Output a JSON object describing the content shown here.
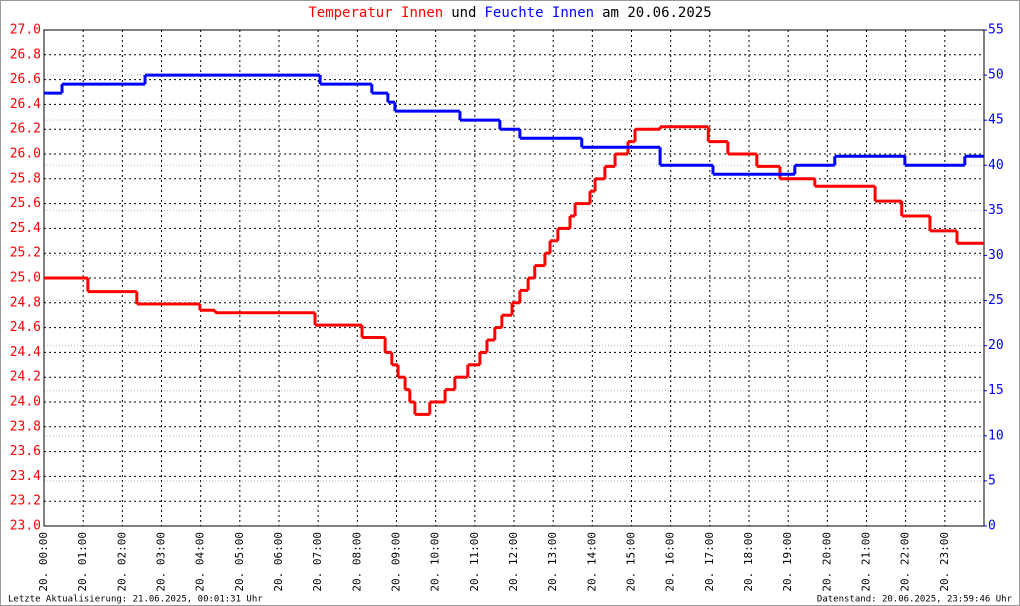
{
  "chart_data": {
    "type": "step-line",
    "title_parts": [
      {
        "text": "Temperatur Innen",
        "color": "#ff0000"
      },
      {
        "text": "und",
        "color": "#000000"
      },
      {
        "text": "Feuchte Innen",
        "color": "#0000ff"
      },
      {
        "text": "am 20.06.2025",
        "color": "#000000"
      }
    ],
    "footer_left": "Letzte Aktualisierung: 21.06.2025, 00:01:31 Uhr",
    "footer_right": "Datenstand: 20.06.2025, 23:59:46 Uhr",
    "grid": true,
    "xlim": [
      0,
      24
    ],
    "xticks": [
      {
        "value": 0,
        "label": "20. 00:00"
      },
      {
        "value": 1,
        "label": "20. 01:00"
      },
      {
        "value": 2,
        "label": "20. 02:00"
      },
      {
        "value": 3,
        "label": "20. 03:00"
      },
      {
        "value": 4,
        "label": "20. 04:00"
      },
      {
        "value": 5,
        "label": "20. 05:00"
      },
      {
        "value": 6,
        "label": "20. 06:00"
      },
      {
        "value": 7,
        "label": "20. 07:00"
      },
      {
        "value": 8,
        "label": "20. 08:00"
      },
      {
        "value": 9,
        "label": "20. 09:00"
      },
      {
        "value": 10,
        "label": "20. 10:00"
      },
      {
        "value": 11,
        "label": "20. 11:00"
      },
      {
        "value": 12,
        "label": "20. 12:00"
      },
      {
        "value": 13,
        "label": "20. 13:00"
      },
      {
        "value": 14,
        "label": "20. 14:00"
      },
      {
        "value": 15,
        "label": "20. 15:00"
      },
      {
        "value": 16,
        "label": "20. 16:00"
      },
      {
        "value": 17,
        "label": "20. 17:00"
      },
      {
        "value": 18,
        "label": "20. 18:00"
      },
      {
        "value": 19,
        "label": "20. 19:00"
      },
      {
        "value": 20,
        "label": "20. 20:00"
      },
      {
        "value": 21,
        "label": "20. 21:00"
      },
      {
        "value": 22,
        "label": "20. 22:00"
      },
      {
        "value": 23,
        "label": "20. 23:00"
      }
    ],
    "ylim": [
      23,
      27
    ],
    "yticks": [
      {
        "value": 23,
        "label": "23.0"
      },
      23.2,
      23.4,
      23.6,
      23.8,
      {
        "value": 24,
        "label": "24.0"
      },
      24.2,
      24.4,
      24.6,
      24.8,
      {
        "value": 25,
        "label": "25.0"
      },
      25.2,
      25.4,
      25.6,
      25.8,
      {
        "value": 26,
        "label": "26.0"
      },
      26.2,
      26.4,
      26.6,
      26.8,
      {
        "value": 27,
        "label": "27.0"
      }
    ],
    "y_color": "#ff0000",
    "y2lim": [
      0,
      55
    ],
    "y2ticks": [
      0,
      5,
      10,
      15,
      20,
      25,
      30,
      35,
      40,
      45,
      50,
      55
    ],
    "y2_color": "#0000ff",
    "series": [
      {
        "name": "Temperatur Innen",
        "color": "#ff0000",
        "x": [
          0,
          1.12,
          2.37,
          3.98,
          4.37,
          6.92,
          8.12,
          8.71,
          8.88,
          9.04,
          9.22,
          9.34,
          9.47,
          9.85,
          10.24,
          10.49,
          10.82,
          11.13,
          11.31,
          11.51,
          11.69,
          11.95,
          12.15,
          12.36,
          12.53,
          12.79,
          12.92,
          13.12,
          13.43,
          13.56,
          13.94,
          14.07,
          14.32,
          14.58,
          14.91,
          15.09,
          15.73,
          16.96,
          17.46,
          18.2,
          18.79,
          19.68,
          21.22,
          21.9,
          22.62,
          23.31
        ],
        "values": [
          25.0,
          24.89,
          24.79,
          24.74,
          24.72,
          24.62,
          24.52,
          24.4,
          24.3,
          24.2,
          24.1,
          24.0,
          23.9,
          24.0,
          24.1,
          24.2,
          24.3,
          24.4,
          24.5,
          24.6,
          24.7,
          24.8,
          24.9,
          25.0,
          25.1,
          25.2,
          25.3,
          25.4,
          25.5,
          25.6,
          25.7,
          25.8,
          25.9,
          26.0,
          26.1,
          26.2,
          26.22,
          26.1,
          26.0,
          25.9,
          25.8,
          25.74,
          25.62,
          25.5,
          25.38,
          25.28
        ]
      },
      {
        "name": "Feuchte Innen",
        "color": "#0000ff",
        "axis": "y2",
        "x": [
          0,
          0.46,
          2.58,
          7.05,
          8.37,
          8.78,
          8.96,
          10.62,
          11.64,
          12.15,
          13.73,
          15.73,
          17.08,
          19.17,
          20.19,
          21.98,
          23.51
        ],
        "values": [
          48,
          49,
          50,
          49,
          48,
          47,
          46,
          45,
          44,
          43,
          42,
          40,
          39,
          40,
          41,
          40,
          41
        ]
      }
    ]
  }
}
